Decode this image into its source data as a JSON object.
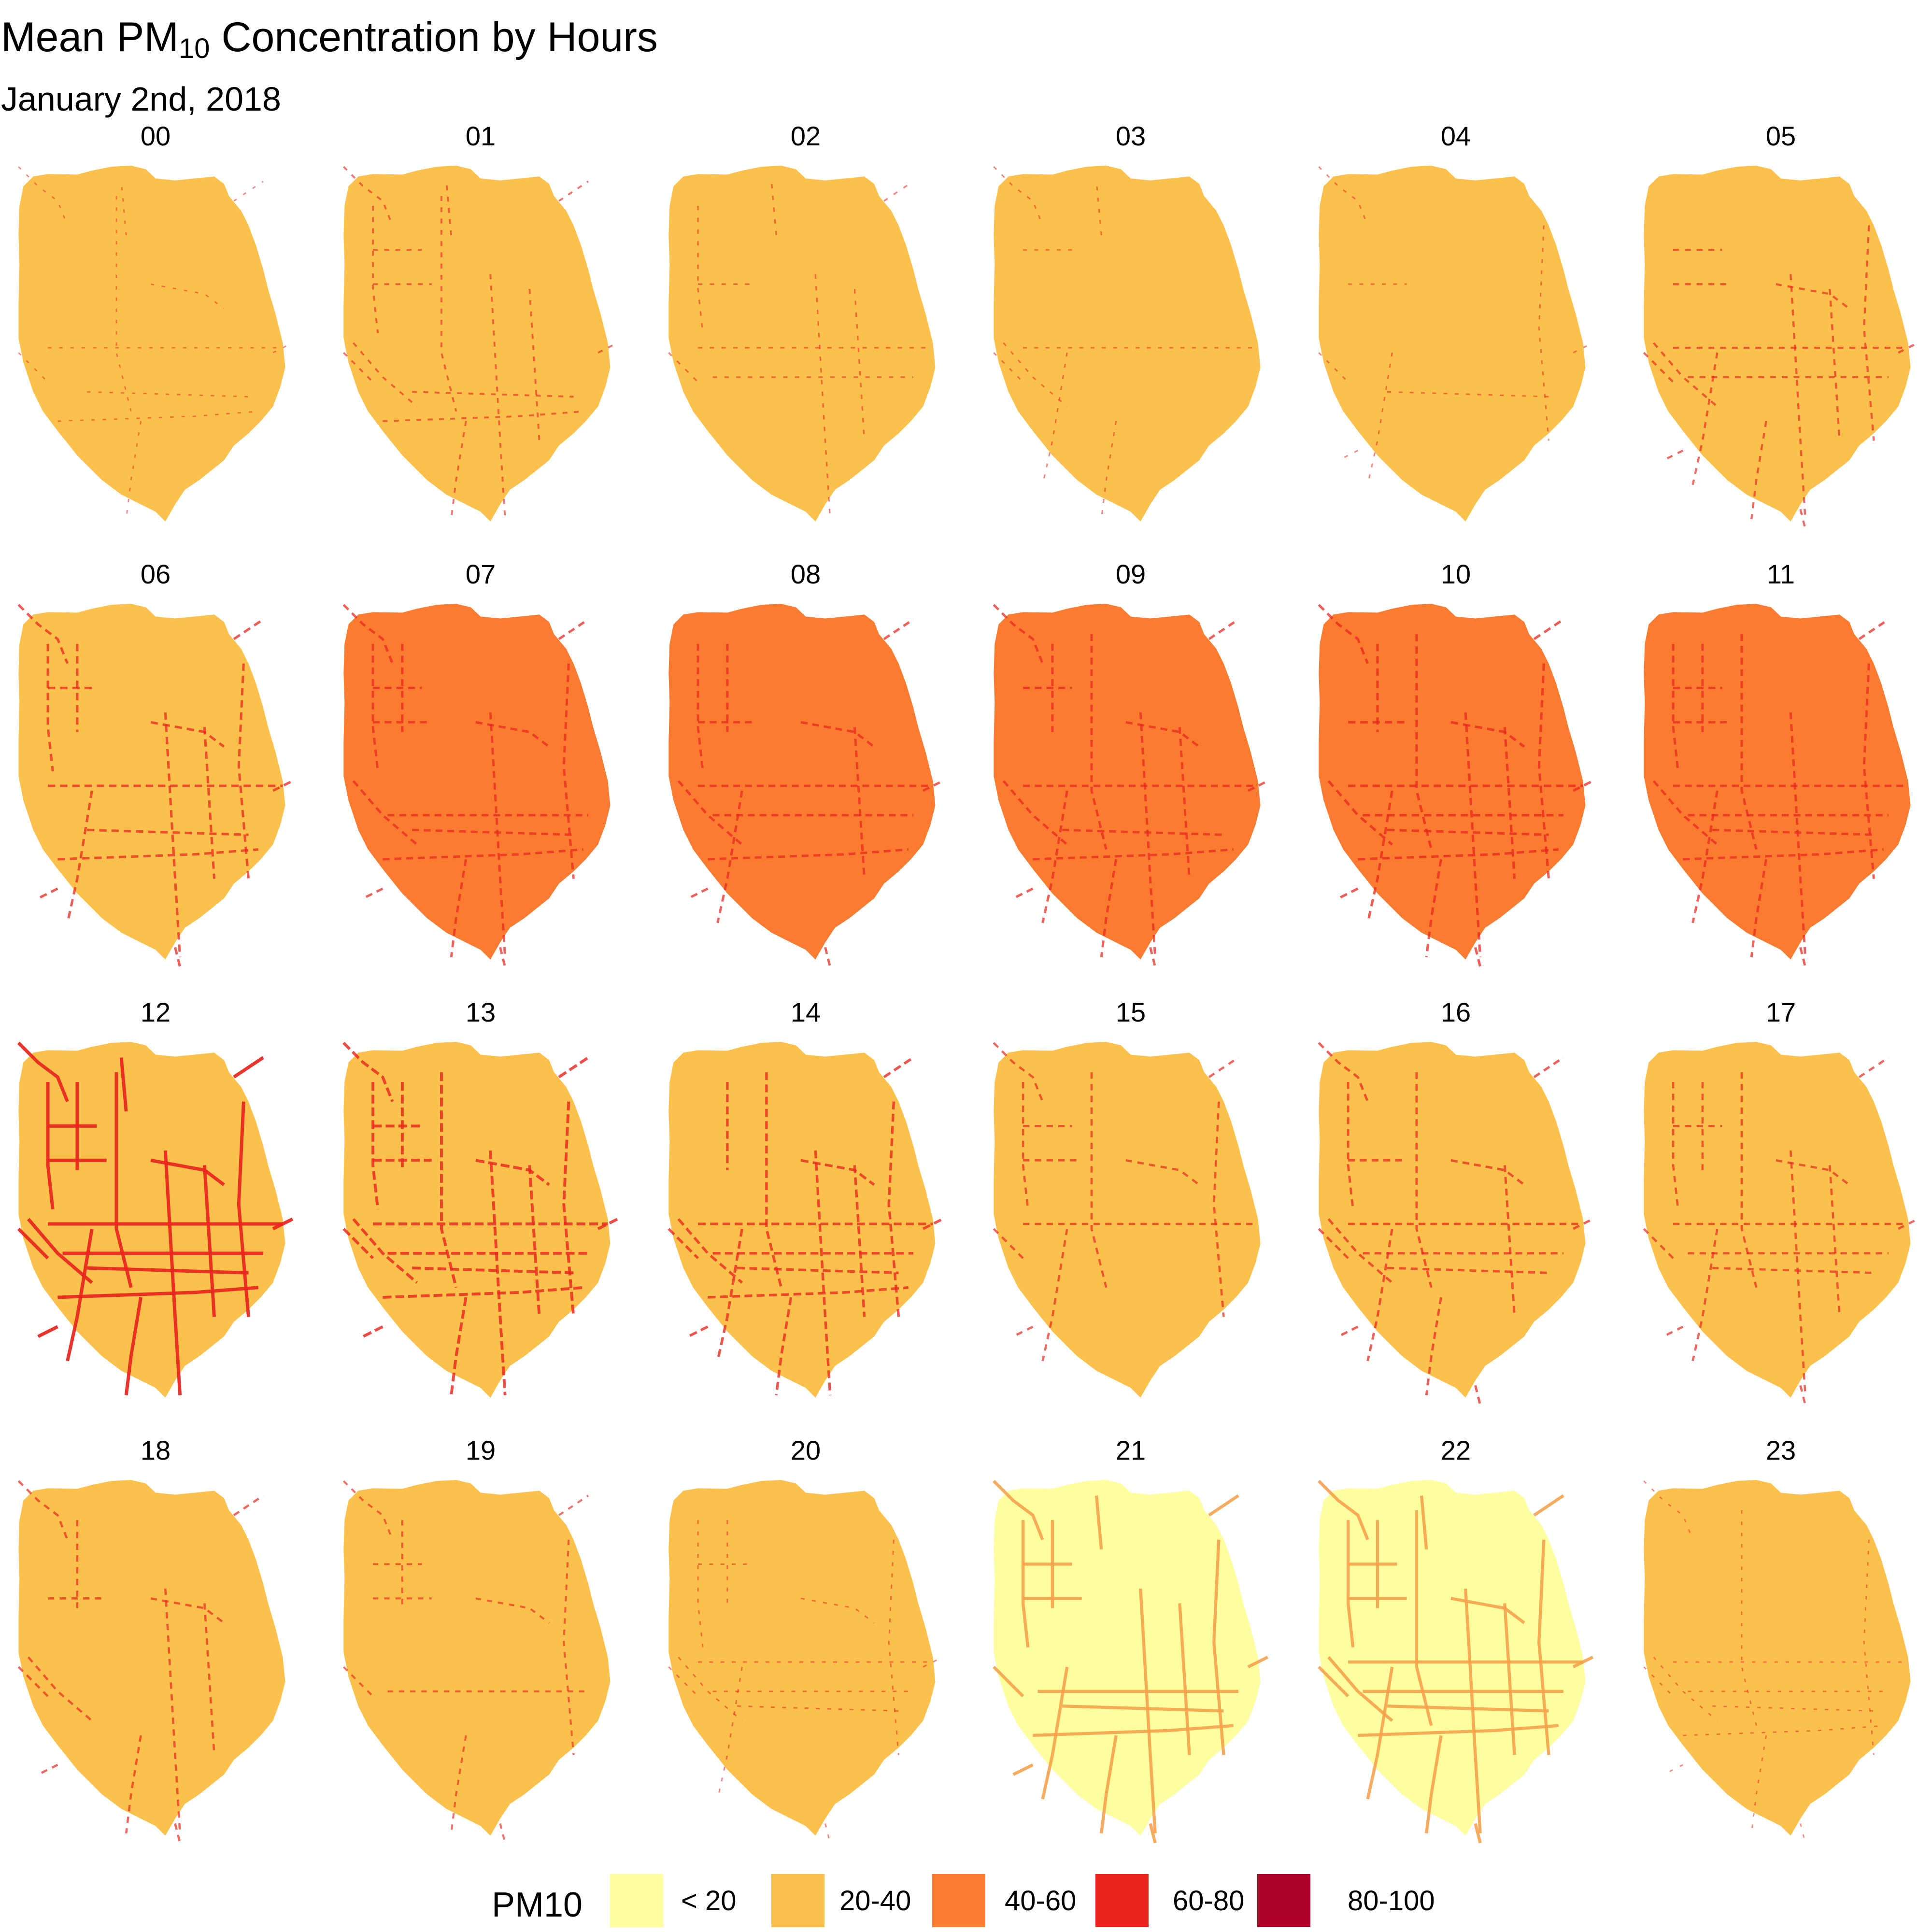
{
  "title": {
    "main_prefix": "Mean PM",
    "main_subscript": "10",
    "main_suffix": " Concentration by Hours",
    "subtitle": "January 2nd, 2018"
  },
  "legend": {
    "title": "PM10",
    "items": [
      {
        "label": "< 20",
        "color": "#FFFF9F"
      },
      {
        "label": "20-40",
        "color": "#FCC14C"
      },
      {
        "label": "40-60",
        "color": "#FB7B31"
      },
      {
        "label": "60-80",
        "color": "#E8261E"
      },
      {
        "label": "80-100",
        "color": "#AE0026"
      }
    ]
  },
  "panels": [
    {
      "hour": "00",
      "fill_class": "20-40",
      "road_density": 0.15
    },
    {
      "hour": "01",
      "fill_class": "20-40",
      "road_density": 0.35
    },
    {
      "hour": "02",
      "fill_class": "20-40",
      "road_density": 0.25
    },
    {
      "hour": "03",
      "fill_class": "20-40",
      "road_density": 0.2
    },
    {
      "hour": "04",
      "fill_class": "20-40",
      "road_density": 0.2
    },
    {
      "hour": "05",
      "fill_class": "20-40",
      "road_density": 0.45
    },
    {
      "hour": "06",
      "fill_class": "20-40",
      "road_density": 0.6
    },
    {
      "hour": "07",
      "fill_class": "40-60",
      "road_density": 0.55
    },
    {
      "hour": "08",
      "fill_class": "40-60",
      "road_density": 0.55
    },
    {
      "hour": "09",
      "fill_class": "40-60",
      "road_density": 0.55
    },
    {
      "hour": "10",
      "fill_class": "40-60",
      "road_density": 0.6
    },
    {
      "hour": "11",
      "fill_class": "40-60",
      "road_density": 0.55
    },
    {
      "hour": "12",
      "fill_class": "20-40",
      "road_density": 0.95
    },
    {
      "hour": "13",
      "fill_class": "20-40",
      "road_density": 0.75
    },
    {
      "hour": "14",
      "fill_class": "20-40",
      "road_density": 0.65
    },
    {
      "hour": "15",
      "fill_class": "20-40",
      "road_density": 0.5
    },
    {
      "hour": "16",
      "fill_class": "20-40",
      "road_density": 0.55
    },
    {
      "hour": "17",
      "fill_class": "20-40",
      "road_density": 0.5
    },
    {
      "hour": "18",
      "fill_class": "20-40",
      "road_density": 0.5
    },
    {
      "hour": "19",
      "fill_class": "20-40",
      "road_density": 0.4
    },
    {
      "hour": "20",
      "fill_class": "20-40",
      "road_density": 0.2
    },
    {
      "hour": "21",
      "fill_class": "< 20",
      "road_density": 0.85
    },
    {
      "hour": "22",
      "fill_class": "< 20",
      "road_density": 0.85
    },
    {
      "hour": "23",
      "fill_class": "20-40",
      "road_density": 0.15
    }
  ]
}
